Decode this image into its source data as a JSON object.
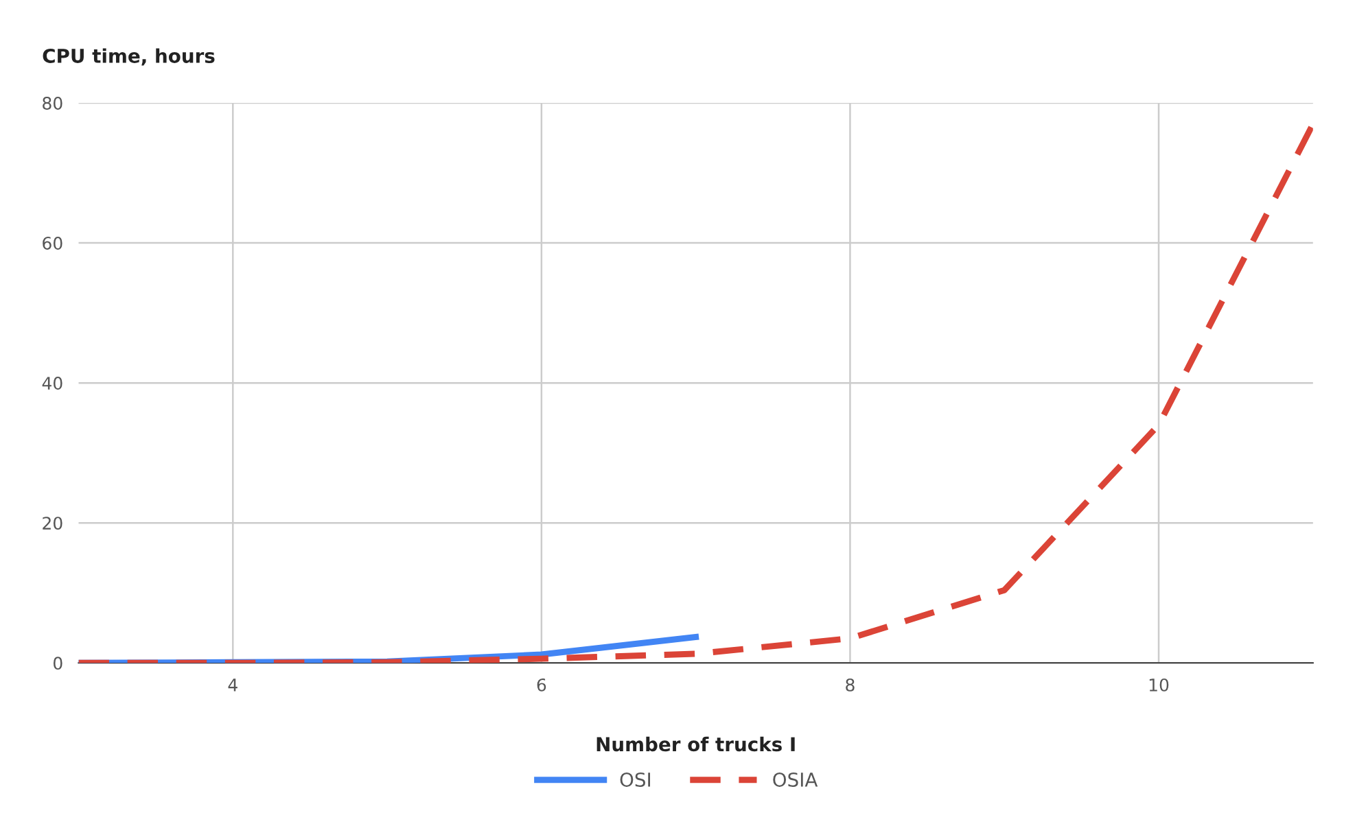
{
  "chart_data": {
    "type": "line",
    "ylabel": "CPU time, hours",
    "xlabel": "Number of trucks I",
    "xlim": [
      3,
      11
    ],
    "xticks": [
      4,
      6,
      8,
      10
    ],
    "ylim": [
      0,
      80
    ],
    "yticks": [
      0,
      20,
      40,
      60,
      80
    ],
    "grid": true,
    "legend": "bottom",
    "marker": "none",
    "series": [
      {
        "name": "OSI",
        "color": "#4285f4",
        "line_style": "solid",
        "x": [
          3,
          4,
          5,
          6,
          7
        ],
        "values": [
          0,
          0.1,
          0.2,
          1.2,
          3.7
        ]
      },
      {
        "name": "OSIA",
        "color": "#db4437",
        "line_style": "dashed",
        "x": [
          3,
          4,
          5,
          6,
          7,
          8,
          9,
          10,
          11
        ],
        "values": [
          0,
          0,
          0.1,
          0.6,
          1.3,
          3.5,
          10.4,
          34,
          77
        ]
      }
    ]
  }
}
